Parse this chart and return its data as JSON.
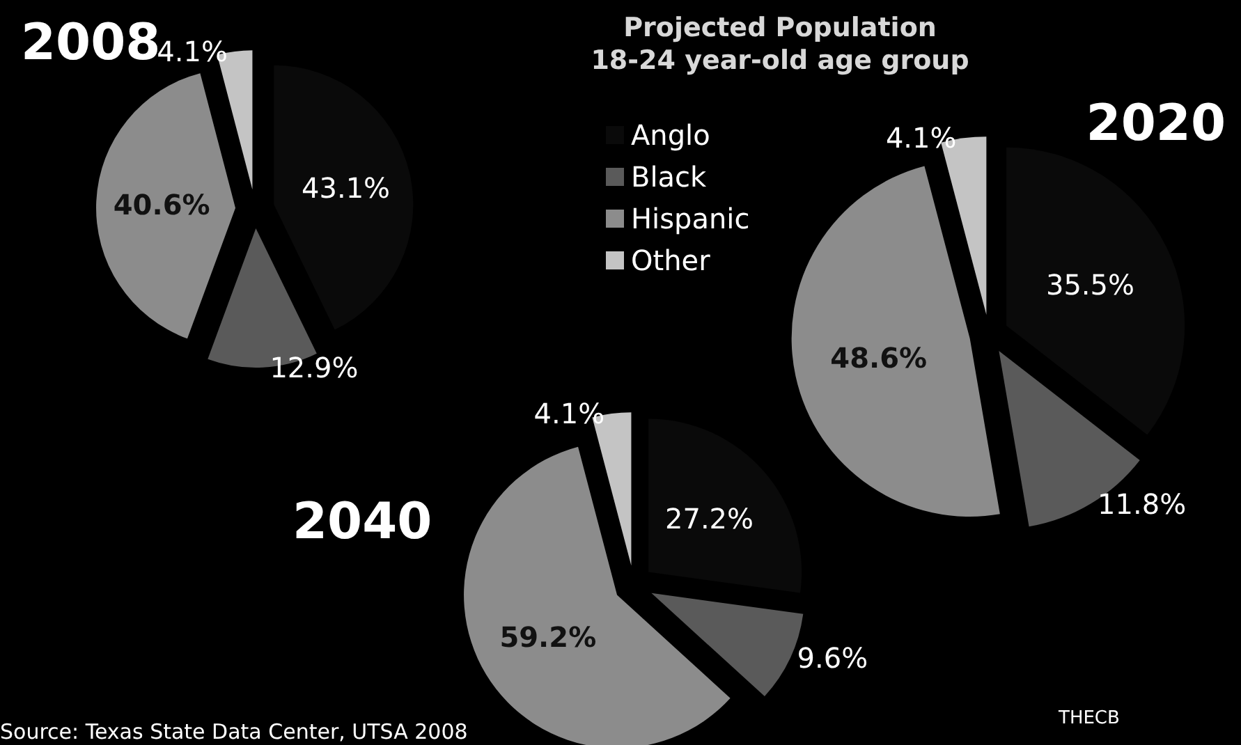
{
  "chart_data": [
    {
      "type": "pie",
      "title": "2008",
      "annotations": [
        "Projected Population\n18-24 year-old age group"
      ],
      "categories": [
        "Anglo",
        "Black",
        "Hispanic",
        "Other"
      ],
      "values": [
        43.1,
        12.9,
        40.6,
        4.1
      ],
      "value_labels": [
        "43.1%",
        "12.9%",
        "40.6%",
        "4.1%"
      ],
      "colors": [
        "#0a0a0a",
        "#5a5a5a",
        "#8c8c8c",
        "#c4c4c4"
      ],
      "legend": "right"
    },
    {
      "type": "pie",
      "title": "2020",
      "categories": [
        null,
        null,
        null,
        null
      ],
      "values": [
        35.5,
        11.8,
        48.6,
        4.1
      ],
      "value_labels": [
        "35.5%",
        "11.8%",
        "48.6%",
        "4.1%"
      ],
      "colors": [
        "#0a0a0a",
        "#5a5a5a",
        "#8c8c8c",
        "#c4c4c4"
      ]
    },
    {
      "type": "pie",
      "title": "2040",
      "annotations": [
        "Source: Texas State Data Center, UTSA 2008",
        "THECB"
      ],
      "categories": [
        null,
        null,
        null,
        null
      ],
      "values": [
        27.2,
        9.6,
        59.2,
        4.1
      ],
      "value_labels": [
        "27.2%",
        "9.6%",
        "59.2%",
        "4.1%"
      ],
      "colors": [
        "#0a0a0a",
        "#5a5a5a",
        "#8c8c8c",
        "#c4c4c4"
      ]
    }
  ]
}
